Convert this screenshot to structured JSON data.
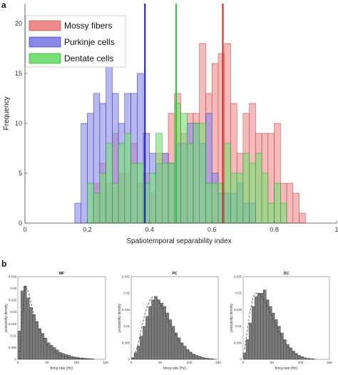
{
  "panels": {
    "a": "a",
    "b": "b"
  },
  "chart_data": [
    {
      "type": "bar",
      "panel": "a",
      "xlabel": "Spatiotemporal separability index",
      "ylabel": "Frequency",
      "xlim": [
        0,
        1
      ],
      "ylim": [
        0,
        22
      ],
      "xticks": [
        "0",
        "0.2",
        "0.4",
        "0.6",
        "0.8",
        "1"
      ],
      "yticks": [
        "0",
        "5",
        "10",
        "15",
        "20"
      ],
      "bin_width": 0.02,
      "bin_starts": [
        0.16,
        0.18,
        0.2,
        0.22,
        0.24,
        0.26,
        0.28,
        0.3,
        0.32,
        0.34,
        0.36,
        0.38,
        0.4,
        0.42,
        0.44,
        0.46,
        0.48,
        0.5,
        0.52,
        0.54,
        0.56,
        0.58,
        0.6,
        0.62,
        0.64,
        0.66,
        0.68,
        0.7,
        0.72,
        0.74,
        0.76,
        0.78,
        0.8,
        0.82,
        0.84,
        0.86,
        0.88
      ],
      "legend": {
        "position": "top-left",
        "entries": [
          "Mossy fibers",
          "Purkinje cells",
          "Dentate cells"
        ]
      },
      "series": [
        {
          "name": "Mossy fibers",
          "color": "#f08a8a",
          "values": [
            0,
            0,
            0,
            4,
            6,
            4,
            9,
            5,
            5,
            8,
            4,
            5,
            3,
            7,
            7,
            11,
            13,
            9,
            11,
            11,
            18,
            13,
            16,
            17,
            18,
            12,
            7,
            11,
            12,
            9,
            9,
            9,
            10,
            4,
            4,
            3,
            1
          ]
        },
        {
          "name": "Purkinje cells",
          "color": "#8888e8",
          "values": [
            2,
            10,
            11,
            13,
            12,
            19,
            13,
            10,
            13,
            13,
            15,
            9,
            7,
            6,
            7,
            6,
            8,
            8,
            10,
            10,
            8,
            11,
            5,
            3,
            3,
            3,
            4,
            2,
            2,
            0,
            0,
            0,
            0,
            0,
            0,
            0,
            0
          ]
        },
        {
          "name": "Dentate cells",
          "color": "#77dd77",
          "values": [
            0,
            0,
            4,
            3,
            5,
            8,
            4,
            8,
            9,
            6,
            6,
            4,
            5,
            9,
            6,
            6,
            12,
            11,
            8,
            10,
            10,
            4,
            4,
            4,
            8,
            5,
            5,
            7,
            6,
            7,
            5,
            2,
            4,
            2,
            0,
            0,
            0
          ]
        }
      ],
      "vertical_lines": [
        {
          "color": "#1a1aa8",
          "x": 0.385
        },
        {
          "color": "#22cc22",
          "x": 0.485
        },
        {
          "color": "#d42020",
          "x": 0.635
        }
      ]
    },
    {
      "type": "bar",
      "panel": "b",
      "title": "MF",
      "xlabel": "firing rate (Hz)",
      "ylabel": "probability density",
      "xlim": [
        0,
        150
      ],
      "ylim": [
        0,
        0.035
      ],
      "xticks": [
        "0",
        "50",
        "100",
        "150"
      ],
      "yticks": [
        "0",
        "0.005",
        "0.01",
        "0.015",
        "0.02",
        "0.025",
        "0.03",
        "0.035"
      ],
      "bin_width": 5,
      "values": [
        0.012,
        0.029,
        0.031,
        0.026,
        0.022,
        0.019,
        0.016,
        0.013,
        0.011,
        0.009,
        0.007,
        0.006,
        0.005,
        0.004,
        0.003,
        0.0025,
        0.002,
        0.0017,
        0.0013,
        0.001,
        0.0008,
        0.0006,
        0.0005,
        0.0004,
        0.0003,
        0.0002
      ],
      "fit": [
        0.0,
        0.018,
        0.031,
        0.029,
        0.024,
        0.019,
        0.015,
        0.012,
        0.009,
        0.007,
        0.0055,
        0.0043,
        0.0033,
        0.0025,
        0.0019,
        0.0015,
        0.0011,
        0.0008,
        0.0006,
        0.0005,
        0.0004,
        0.0003,
        0.0002,
        0.0001,
        0.0001,
        0.0
      ]
    },
    {
      "type": "bar",
      "panel": "b",
      "title": "PC",
      "xlabel": "firing rate (Hz)",
      "ylabel": "probability density",
      "xlim": [
        0,
        150
      ],
      "ylim": [
        0,
        0.025
      ],
      "xticks": [
        "0",
        "50",
        "100",
        "150"
      ],
      "yticks": [
        "0",
        "0.005",
        "0.01",
        "0.015",
        "0.02",
        "0.025"
      ],
      "bin_width": 5,
      "values": [
        0.0005,
        0.002,
        0.004,
        0.007,
        0.01,
        0.013,
        0.016,
        0.018,
        0.019,
        0.018,
        0.017,
        0.016,
        0.014,
        0.012,
        0.01,
        0.008,
        0.0065,
        0.005,
        0.004,
        0.003,
        0.0022,
        0.0016,
        0.0012,
        0.0009,
        0.0006,
        0.0004,
        0.0003,
        0.0002,
        0.0001
      ],
      "fit": [
        0.0,
        0.002,
        0.005,
        0.009,
        0.013,
        0.016,
        0.018,
        0.019,
        0.0185,
        0.0175,
        0.016,
        0.014,
        0.012,
        0.0103,
        0.0086,
        0.007,
        0.0056,
        0.0044,
        0.0034,
        0.0026,
        0.002,
        0.0015,
        0.0011,
        0.0008,
        0.0006,
        0.0004,
        0.0003,
        0.0002,
        0.0001
      ]
    },
    {
      "type": "bar",
      "panel": "b",
      "title": "DC",
      "xlabel": "firing rate (Hz)",
      "ylabel": "probability density",
      "xlim": [
        0,
        150
      ],
      "ylim": [
        0,
        0.025
      ],
      "xticks": [
        "0",
        "50",
        "100",
        "150"
      ],
      "yticks": [
        "0",
        "0.005",
        "0.01",
        "0.015",
        "0.02",
        "0.025"
      ],
      "bin_width": 5,
      "values": [
        0.002,
        0.006,
        0.011,
        0.016,
        0.019,
        0.02,
        0.02,
        0.021,
        0.018,
        0.016,
        0.014,
        0.012,
        0.01,
        0.008,
        0.006,
        0.0045,
        0.0035,
        0.0025,
        0.0018,
        0.0012,
        0.0008,
        0.0005,
        0.0003,
        0.0002,
        0.0001
      ],
      "fit": [
        0.003,
        0.009,
        0.015,
        0.019,
        0.02,
        0.02,
        0.019,
        0.0175,
        0.016,
        0.014,
        0.012,
        0.01,
        0.008,
        0.0064,
        0.005,
        0.0038,
        0.0028,
        0.002,
        0.0014,
        0.001,
        0.0007,
        0.0004,
        0.0003,
        0.0002,
        0.0001
      ]
    }
  ]
}
